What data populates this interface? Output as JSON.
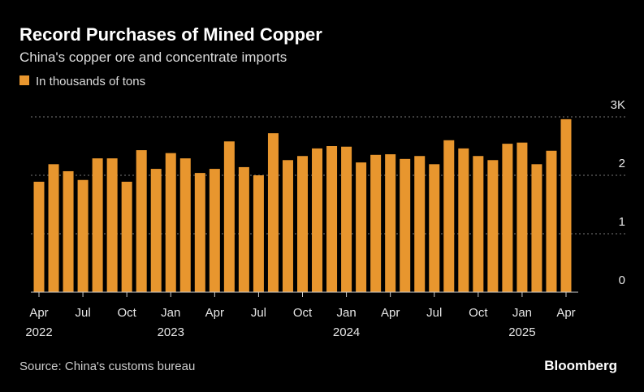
{
  "chart_data": {
    "type": "bar",
    "title": "Record Purchases of Mined Copper",
    "subtitle": "China's copper ore and concentrate imports",
    "source": "Source: China's customs bureau",
    "brand": "Bloomberg",
    "categories": [
      "Apr",
      null,
      null,
      "Jul",
      null,
      null,
      "Oct",
      null,
      null,
      "Jan",
      null,
      null,
      "Apr",
      null,
      null,
      "Jul",
      null,
      null,
      "Oct",
      null,
      null,
      "Jan",
      null,
      null,
      "Apr",
      null,
      null,
      "Jul",
      null,
      null,
      "Oct",
      null,
      null,
      "Jan",
      null,
      null,
      "Apr"
    ],
    "year_labels": [
      "2022",
      null,
      null,
      null,
      null,
      null,
      null,
      null,
      null,
      "2023",
      null,
      null,
      null,
      null,
      null,
      null,
      null,
      null,
      null,
      null,
      null,
      "2024",
      null,
      null,
      null,
      null,
      null,
      null,
      null,
      null,
      null,
      null,
      null,
      "2025",
      null,
      null,
      null
    ],
    "series": [
      {
        "name": "In thousands of tons",
        "color": "#e8962e",
        "values": [
          1.89,
          2.19,
          2.07,
          1.92,
          2.29,
          2.29,
          1.89,
          2.43,
          2.11,
          2.38,
          2.29,
          2.04,
          2.11,
          2.58,
          2.14,
          2.0,
          2.72,
          2.26,
          2.33,
          2.46,
          2.5,
          2.49,
          2.22,
          2.35,
          2.36,
          2.28,
          2.33,
          2.19,
          2.6,
          2.46,
          2.33,
          2.26,
          2.54,
          2.56,
          2.19,
          2.42,
          2.96
        ]
      }
    ],
    "ylim": [
      0,
      3
    ],
    "yticks": [
      0,
      1,
      2,
      {
        "value": 3,
        "label": "3K"
      }
    ],
    "grid": true
  }
}
